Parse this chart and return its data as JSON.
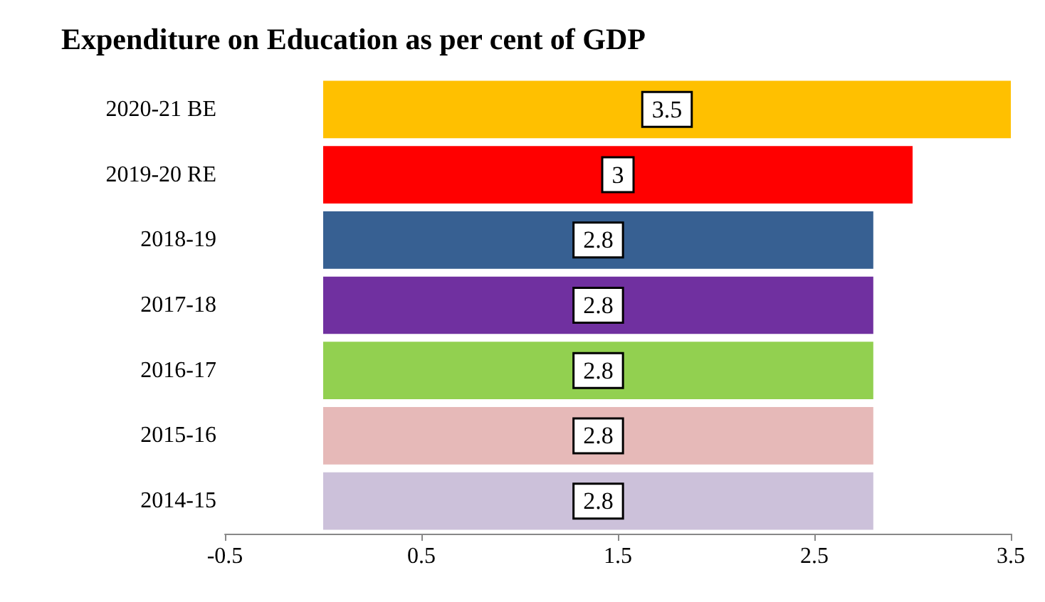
{
  "chart_data": {
    "type": "bar",
    "orientation": "horizontal",
    "title": "Expenditure on Education as per cent of GDP",
    "categories": [
      "2020-21 BE",
      "2019-20 RE",
      "2018-19",
      "2017-18",
      "2016-17",
      "2015-16",
      "2014-15"
    ],
    "values": [
      3.5,
      3,
      2.8,
      2.8,
      2.8,
      2.8,
      2.8
    ],
    "colors": [
      "#ffc000",
      "#ff0000",
      "#376092",
      "#7030a0",
      "#92d050",
      "#e6b9b8",
      "#ccc1da"
    ],
    "xlim": [
      -0.5,
      3.5
    ],
    "xticks": [
      -0.5,
      0.5,
      1.5,
      2.5,
      3.5
    ],
    "data_labels": true,
    "grid": false
  }
}
